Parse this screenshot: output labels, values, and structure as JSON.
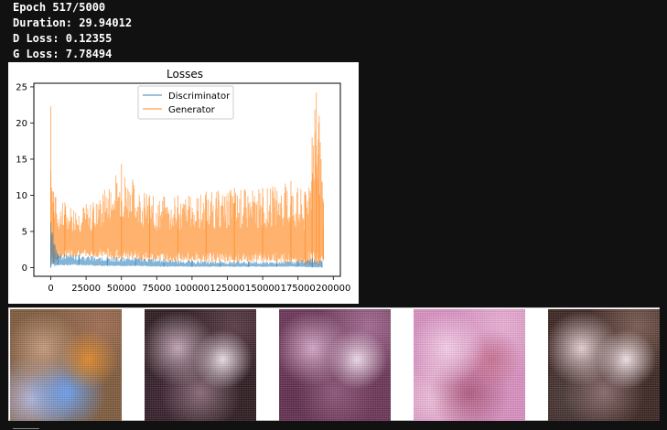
{
  "log": {
    "epoch": "Epoch 517/5000",
    "duration": "Duration: 29.94012",
    "d_loss": "D Loss: 0.12355",
    "g_loss": "G Loss: 7.78494"
  },
  "chart_data": {
    "type": "line",
    "title": "Losses",
    "xlabel": "",
    "ylabel": "",
    "xlim": [
      -12000,
      205000
    ],
    "ylim": [
      -1.2,
      25.5
    ],
    "x_ticks": [
      0,
      25000,
      50000,
      75000,
      100000,
      125000,
      150000,
      175000,
      200000
    ],
    "x_tick_labels": [
      "0",
      "25000",
      "50000",
      "75000",
      "100000",
      "125000",
      "150000",
      "175000",
      "200000"
    ],
    "y_ticks": [
      0,
      5,
      10,
      15,
      20,
      25
    ],
    "y_tick_labels": [
      "0",
      "5",
      "10",
      "15",
      "20",
      "25"
    ],
    "grid": false,
    "legend": "upper center",
    "series": [
      {
        "name": "Discriminator",
        "color": "#1f77b4",
        "x": [
          0,
          5000,
          20000,
          40000,
          60000,
          80000,
          100000,
          120000,
          140000,
          160000,
          175000,
          185000,
          192000
        ],
        "y_low": [
          0.0,
          0.3,
          0.3,
          0.2,
          0.2,
          0.1,
          0.1,
          0.1,
          0.1,
          0.1,
          0.1,
          0.0,
          0.0
        ],
        "y_high": [
          6.3,
          2.0,
          1.8,
          1.5,
          1.4,
          1.2,
          1.0,
          0.9,
          0.9,
          0.8,
          1.0,
          1.3,
          1.0
        ]
      },
      {
        "name": "Generator",
        "color": "#ff7f0e",
        "x": [
          0,
          2000,
          10000,
          30000,
          50000,
          70000,
          90000,
          110000,
          130000,
          150000,
          170000,
          180000,
          185000,
          188000,
          190000,
          193000
        ],
        "y_low": [
          0.0,
          0.5,
          1.5,
          1.5,
          1.0,
          1.0,
          0.8,
          0.8,
          0.7,
          0.8,
          0.6,
          0.3,
          0.3,
          0.5,
          0.3,
          1.0
        ],
        "y_high": [
          22.3,
          10.5,
          9.0,
          9.0,
          14.3,
          10.0,
          10.0,
          10.5,
          11.0,
          11.0,
          12.0,
          10.5,
          18.0,
          24.2,
          21.0,
          9.0
        ]
      }
    ]
  },
  "samples": [
    {
      "name": "generated-sample-1",
      "colors": [
        "#7e5a3c",
        "#a06d52",
        "#c79b7c",
        "#e08a2a",
        "#6aa0f0",
        "#b8b8dc"
      ]
    },
    {
      "name": "generated-sample-2",
      "colors": [
        "#2c1a1f",
        "#5a3a44",
        "#c6a8b8",
        "#efe0ea",
        "#8a6a78",
        "#3a2030"
      ]
    },
    {
      "name": "generated-sample-3",
      "colors": [
        "#6a3456",
        "#a46a92",
        "#d4a8c8",
        "#f0dcec",
        "#8c5478",
        "#5a2848"
      ]
    },
    {
      "name": "generated-sample-4",
      "colors": [
        "#d890c0",
        "#eab0d6",
        "#f6d0ea",
        "#c87090",
        "#b05a80",
        "#f2c4e0"
      ]
    },
    {
      "name": "generated-sample-5",
      "colors": [
        "#3a2420",
        "#7a5a50",
        "#e8d0d4",
        "#f4e4ea",
        "#8a6a6c",
        "#4a3a38"
      ]
    }
  ]
}
